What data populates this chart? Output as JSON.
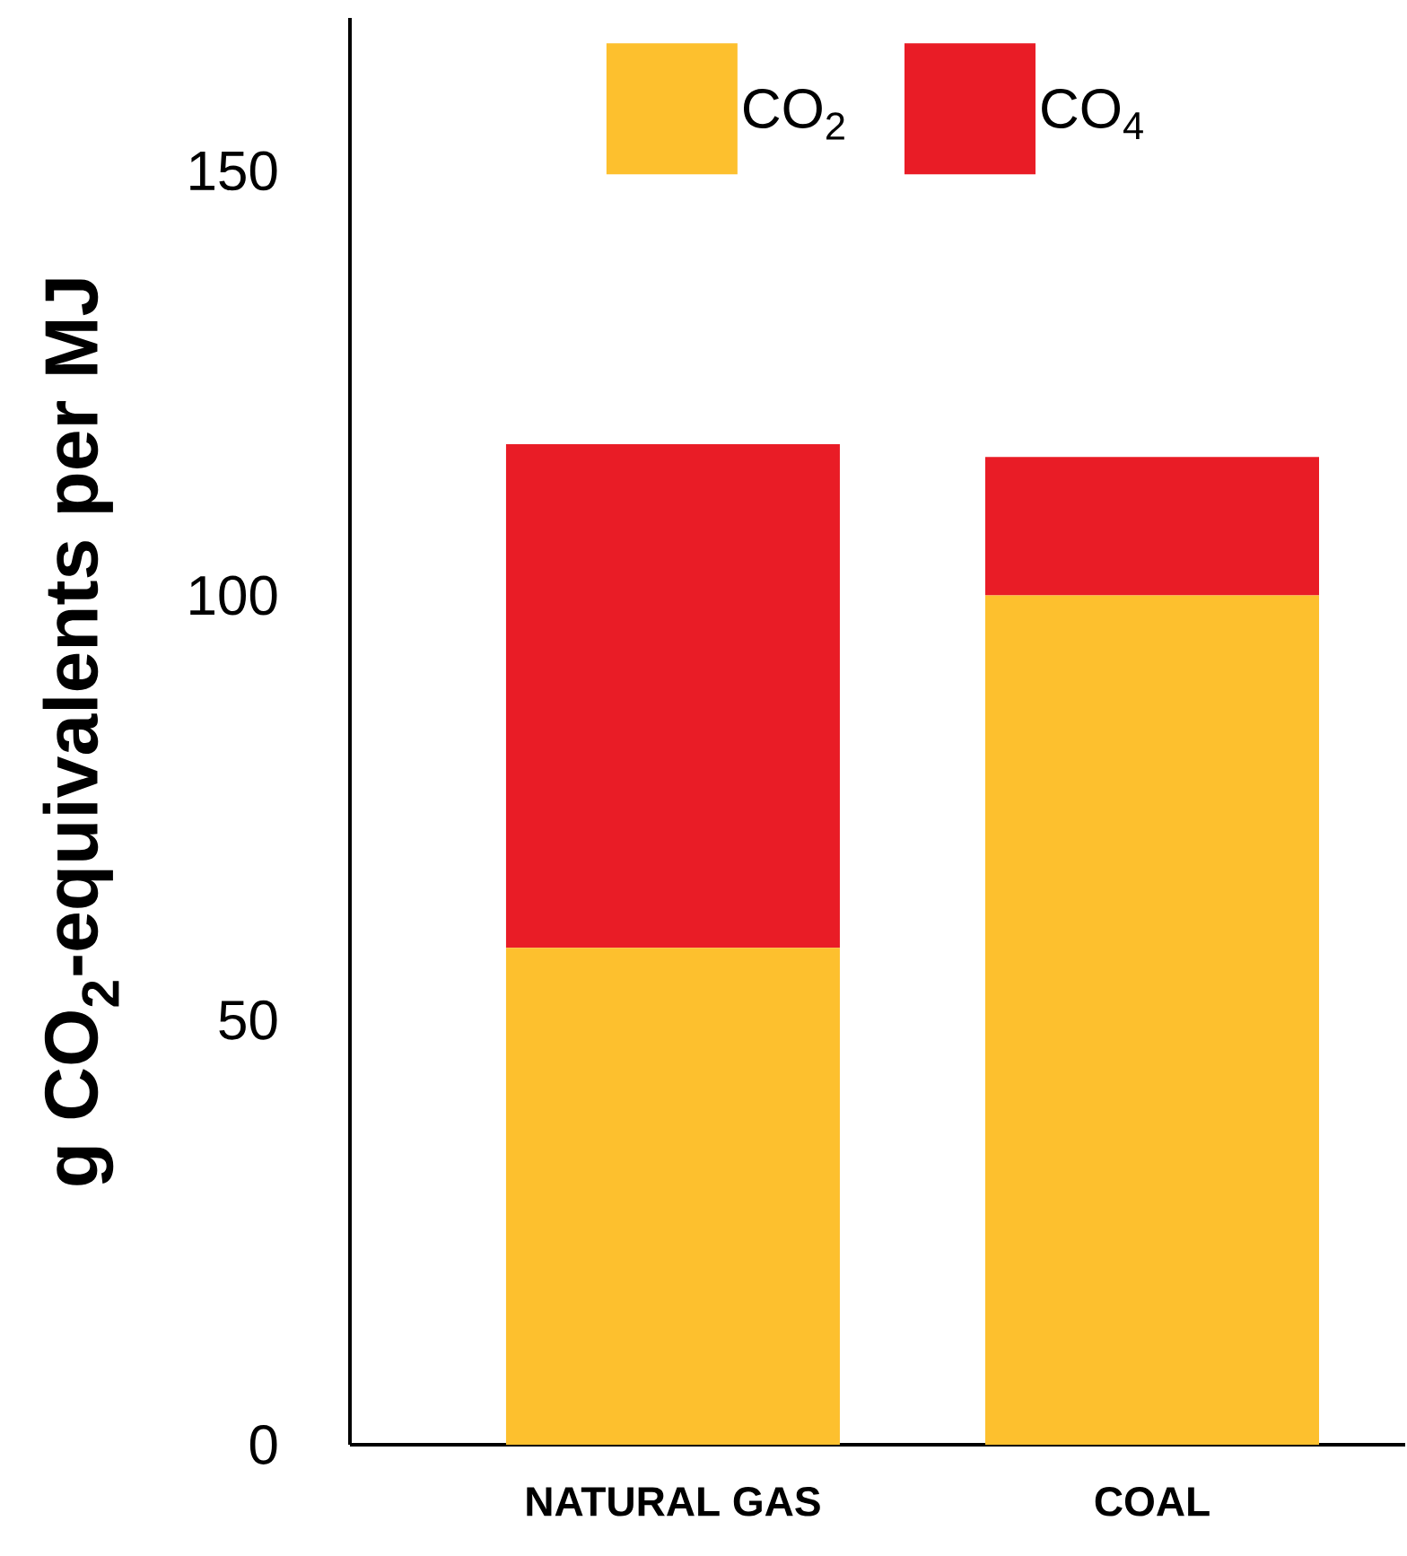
{
  "chart_data": {
    "type": "bar",
    "stacked": true,
    "ylabel": "**g CO$_{2}$-equivalents per MJ**",
    "categories": [
      "NATURAL GAS",
      "COAL"
    ],
    "series": [
      {
        "name": "CO$_{2}$",
        "color": "#fdc02e",
        "values": [
          58.5,
          100
        ]
      },
      {
        "name": "CO$_{4}$",
        "color": "#e91c26",
        "values": [
          59.3,
          16.3
        ]
      }
    ],
    "ylim": [
      0,
      168
    ],
    "yticks": [
      0,
      50,
      100,
      150
    ],
    "legend": "top"
  }
}
